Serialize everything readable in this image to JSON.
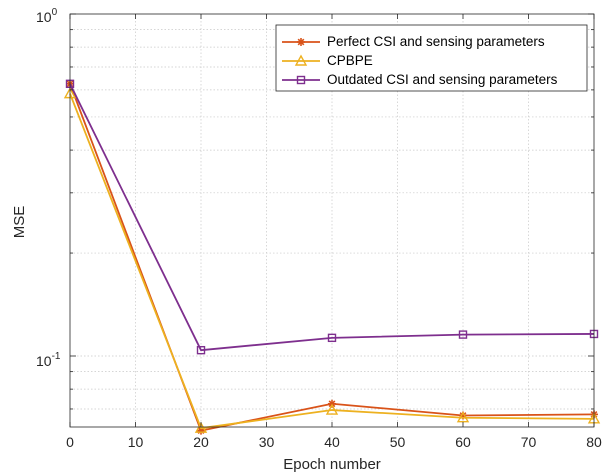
{
  "chart_data": {
    "type": "line",
    "title": "",
    "xlabel": "Epoch number",
    "ylabel": "MSE",
    "x": [
      0,
      20,
      40,
      60,
      80
    ],
    "xlim": [
      0,
      80
    ],
    "xticks": [
      "0",
      "10",
      "20",
      "30",
      "40",
      "50",
      "60",
      "70",
      "80"
    ],
    "yscale": "log",
    "ylim": [
      0.062,
      1.0
    ],
    "ytick_labels": {
      "decade_0": "10",
      "exp_0": "0",
      "decade_1": "10",
      "exp_1": "-1"
    },
    "grid": true,
    "legend_position": "top-right",
    "series": [
      {
        "name": "Perfect CSI and sensing parameters",
        "color": "#d95319",
        "marker": "asterisk",
        "values": [
          0.625,
          0.0605,
          0.0725,
          0.067,
          0.0675
        ]
      },
      {
        "name": "CPBPE",
        "color": "#edb120",
        "marker": "triangle",
        "values": [
          0.585,
          0.0615,
          0.0695,
          0.066,
          0.0655
        ]
      },
      {
        "name": "Outdated CSI and sensing parameters",
        "color": "#7e2f8e",
        "marker": "square",
        "values": [
          0.625,
          0.104,
          0.113,
          0.1155,
          0.116
        ]
      }
    ]
  }
}
